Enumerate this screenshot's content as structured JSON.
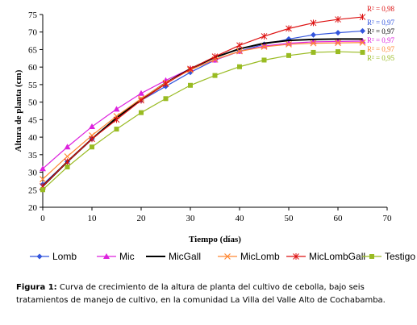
{
  "chart_data": {
    "type": "line",
    "xlabel": "Tiempo (días)",
    "ylabel": "Altura de planta (cm)",
    "xlim": [
      0,
      70
    ],
    "ylim": [
      20,
      75
    ],
    "xticks": [
      0,
      10,
      20,
      30,
      40,
      50,
      60,
      70
    ],
    "yticks": [
      20,
      25,
      30,
      35,
      40,
      45,
      50,
      55,
      60,
      65,
      70,
      75
    ],
    "x": [
      0,
      5,
      10,
      15,
      20,
      25,
      30,
      35,
      40,
      45,
      50,
      55,
      60,
      65
    ],
    "grid": false,
    "legend_position": "bottom",
    "series": [
      {
        "name": "Lomb",
        "color": "#3355dd",
        "marker": "diamond",
        "r2": "R² = 0,97",
        "values": [
          26.5,
          33,
          39.5,
          45.5,
          50.5,
          54.5,
          58.5,
          62,
          64.5,
          66.5,
          68,
          69.2,
          69.8,
          70.3
        ]
      },
      {
        "name": "Mic",
        "color": "#dd22dd",
        "marker": "triangle",
        "r2": "R² = 0,97",
        "values": [
          31,
          37.2,
          43,
          48,
          52.5,
          56.2,
          59.5,
          62,
          64.5,
          66,
          66.8,
          67.2,
          67.3,
          67.4
        ]
      },
      {
        "name": "MicGall",
        "color": "#000000",
        "marker": "none",
        "r2": "R² = 0,97",
        "values": [
          26,
          33,
          39.5,
          45.5,
          50.8,
          55.5,
          59.5,
          62.8,
          65.2,
          66.8,
          67.6,
          67.9,
          68,
          68
        ]
      },
      {
        "name": "MicLomb",
        "color": "#ff8833",
        "marker": "x",
        "r2": "R² = 0,97",
        "values": [
          28,
          34.5,
          40.5,
          46,
          51,
          55.5,
          59.2,
          62.2,
          64.5,
          65.8,
          66.5,
          66.8,
          66.9,
          67
        ]
      },
      {
        "name": "MicLombGall",
        "color": "#dd1111",
        "marker": "star",
        "r2": "R² = 0,98",
        "values": [
          26,
          33,
          39.5,
          45,
          50.5,
          55.2,
          59.5,
          63,
          66.2,
          68.8,
          71,
          72.6,
          73.6,
          74.3
        ]
      },
      {
        "name": "Testigo",
        "color": "#99bb22",
        "marker": "square",
        "r2": "R² = 0,95",
        "values": [
          25,
          31.5,
          37.2,
          42.3,
          47,
          51,
          54.8,
          57.6,
          60.1,
          62,
          63.3,
          64.2,
          64.4,
          64.2
        ]
      }
    ],
    "r2_labels": [
      {
        "text": "R² = 0,98",
        "color": "#dd1111"
      },
      {
        "text": "R² = 0,97",
        "color": "#3355dd"
      },
      {
        "text": "R² = 0,97",
        "color": "#000000"
      },
      {
        "text": "R² = 0,97",
        "color": "#dd22dd"
      },
      {
        "text": "R² = 0,97",
        "color": "#ff8833"
      },
      {
        "text": "R² = 0,95",
        "color": "#99bb22"
      }
    ]
  },
  "caption": {
    "label": "Figura 1:",
    "text": "Curva de crecimiento de la altura de planta del cultivo de cebolla, bajo seis tratamientos de manejo de cultivo, en la comunidad La Villa del Valle Alto de Cochabamba."
  }
}
